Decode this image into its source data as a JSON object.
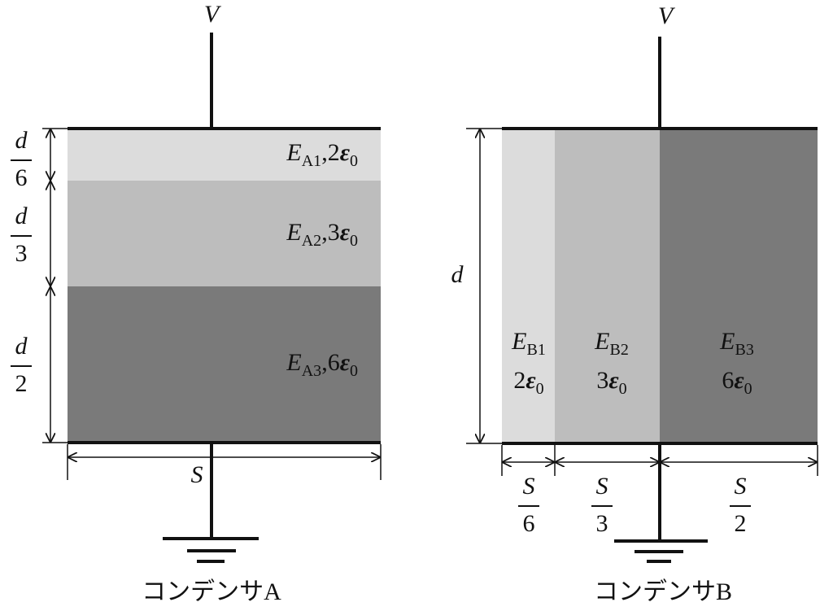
{
  "capacitor_a": {
    "voltage": "V",
    "layers": [
      {
        "symbol": "E",
        "subscript": "A1",
        "separator": ",",
        "coefficient": "2",
        "constant": "ε",
        "constant_subscript": "0"
      },
      {
        "symbol": "E",
        "subscript": "A2",
        "separator": ",",
        "coefficient": "3",
        "constant": "ε",
        "constant_subscript": "0"
      },
      {
        "symbol": "E",
        "subscript": "A3",
        "separator": ",",
        "coefficient": "6",
        "constant": "ε",
        "constant_subscript": "0"
      }
    ],
    "thickness_labels": [
      {
        "numerator": "d",
        "denominator": "6"
      },
      {
        "numerator": "d",
        "denominator": "3"
      },
      {
        "numerator": "d",
        "denominator": "2"
      }
    ],
    "area_label": "S",
    "caption": "コンデンサA"
  },
  "capacitor_b": {
    "voltage": "V",
    "layers": [
      {
        "symbol": "E",
        "subscript": "B1",
        "coefficient": "2",
        "constant": "ε",
        "constant_subscript": "0"
      },
      {
        "symbol": "E",
        "subscript": "B2",
        "coefficient": "3",
        "constant": "ε",
        "constant_subscript": "0"
      },
      {
        "symbol": "E",
        "subscript": "B3",
        "coefficient": "6",
        "constant": "ε",
        "constant_subscript": "0"
      }
    ],
    "gap_label": "d",
    "width_labels": [
      {
        "numerator": "S",
        "denominator": "6"
      },
      {
        "numerator": "S",
        "denominator": "3"
      },
      {
        "numerator": "S",
        "denominator": "2"
      }
    ],
    "caption": "コンデンサB"
  }
}
